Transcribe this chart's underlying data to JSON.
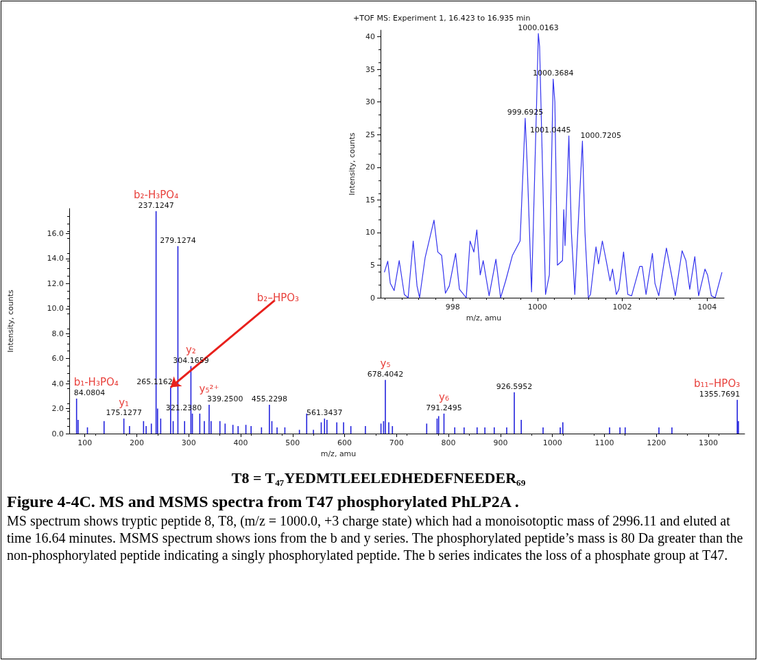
{
  "chart_data": [
    {
      "type": "bar",
      "xlabel": "m/z, amu",
      "ylabel": "Intensity, counts",
      "color": "#2222dd",
      "grid": false,
      "xlim": [
        70,
        1370
      ],
      "xticks": [
        100,
        200,
        300,
        400,
        500,
        600,
        700,
        800,
        900,
        1000,
        1100,
        1200,
        1300
      ],
      "ylim": [
        0,
        18
      ],
      "yticks": [
        {
          "value": 0,
          "label": "0.0"
        },
        {
          "value": 2,
          "label": "2.0"
        },
        {
          "value": 4,
          "label": "4.0"
        },
        {
          "value": 6,
          "label": "6.0"
        },
        {
          "value": 8,
          "label": "8.0"
        },
        {
          "value": 10,
          "label": "10.0"
        },
        {
          "value": 12,
          "label": "12.0"
        },
        {
          "value": 14,
          "label": "14.0"
        },
        {
          "value": 16,
          "label": "16.0"
        }
      ],
      "x": [
        84.0804,
        87,
        105,
        137,
        175.1277,
        186,
        213,
        218,
        228,
        237.1247,
        240,
        246,
        265.1162,
        270,
        279.1274,
        292,
        304.1659,
        307,
        321.238,
        330,
        339.25,
        343,
        360,
        370,
        385,
        395,
        410,
        420,
        440,
        455.2298,
        460,
        470,
        485,
        513,
        527,
        540,
        555,
        561.3437,
        566,
        585,
        598,
        612,
        640,
        670,
        675,
        678.4042,
        685,
        692,
        758,
        778,
        781,
        791.2495,
        812,
        830,
        855,
        870,
        888,
        912,
        926.5952,
        940,
        982,
        1015,
        1020,
        1110,
        1130,
        1140,
        1205,
        1230,
        1355.7691,
        1358
      ],
      "values": [
        2.8,
        1.1,
        0.5,
        1,
        1.2,
        0.6,
        1,
        0.6,
        0.8,
        17.8,
        2,
        1.2,
        3.7,
        1,
        15,
        1,
        5.4,
        1.6,
        1.6,
        1,
        2.3,
        1,
        1,
        0.8,
        0.7,
        0.6,
        0.7,
        0.6,
        0.5,
        2.3,
        1,
        0.5,
        0.5,
        0.3,
        1.6,
        0.3,
        0.9,
        1.2,
        1.1,
        0.9,
        0.9,
        0.6,
        0.6,
        0.8,
        1,
        4.3,
        0.9,
        0.6,
        0.8,
        1.2,
        1.4,
        1.6,
        0.5,
        0.5,
        0.5,
        0.5,
        0.5,
        0.5,
        3.3,
        1.1,
        0.5,
        0.5,
        0.9,
        0.5,
        0.5,
        0.5,
        0.5,
        0.5,
        2.7,
        1
      ],
      "annotations": [
        {
          "text": "84.0804",
          "x": 84.0804,
          "y": 2.8
        },
        {
          "text": "b₁-H₃PO₄",
          "x": 84.0804,
          "y": 2.8
        },
        {
          "text": "175.1277",
          "x": 175.1277,
          "y": 1.2
        },
        {
          "text": "y₁",
          "x": 175.1277,
          "y": 1.2
        },
        {
          "text": "237.1247",
          "x": 237.1247,
          "y": 17.8
        },
        {
          "text": "b₂-H₃PO₄",
          "x": 237.1247,
          "y": 17.8
        },
        {
          "text": "265.1162",
          "x": 265.1162,
          "y": 3.7
        },
        {
          "text": "b₂–HPO₃",
          "x": 265.1162,
          "y": 3.7
        },
        {
          "text": "279.1274",
          "x": 279.1274,
          "y": 15
        },
        {
          "text": "304.1659",
          "x": 304.1659,
          "y": 5.4
        },
        {
          "text": "y₂",
          "x": 304.1659,
          "y": 5.4
        },
        {
          "text": "321.2380",
          "x": 321.238,
          "y": 1.6
        },
        {
          "text": "339.2500",
          "x": 339.25,
          "y": 2.3
        },
        {
          "text": "y₅²⁺",
          "x": 339.25,
          "y": 2.3
        },
        {
          "text": "455.2298",
          "x": 455.2298,
          "y": 2.3
        },
        {
          "text": "561.3437",
          "x": 561.3437,
          "y": 1.2
        },
        {
          "text": "678.4042",
          "x": 678.4042,
          "y": 4.3
        },
        {
          "text": "y₅",
          "x": 678.4042,
          "y": 4.3
        },
        {
          "text": "791.2495",
          "x": 791.2495,
          "y": 1.6
        },
        {
          "text": "y₆",
          "x": 791.2495,
          "y": 1.6
        },
        {
          "text": "926.5952",
          "x": 926.5952,
          "y": 3.3
        },
        {
          "text": "1355.7691",
          "x": 1355.7691,
          "y": 2.7
        },
        {
          "text": "b₁₁–HPO₃",
          "x": 1355.7691,
          "y": 2.7
        },
        "T8 = T₄₇YEDMTLEELEDHEDEFNEEDER₆₉",
        "Figure 4-4C.  MS and MSMS spectra from T47 phosphorylated PhLP2A .",
        "MS spectrum shows tryptic peptide 8, T8, (m/z = 1000.0, +3 charge state) which had a monoisotoptic mass of 2996.11 and eluted at time 16.64 minutes. MSMS spectrum shows ions from the b and y series. The phosphorylated peptide’s mass is 80 Da greater than the non-phosphorylated peptide indicating a singly phosphorylated peptide. The b series indicates the loss of a phosphate group at T47."
      ]
    },
    {
      "type": "line",
      "title": "+TOF MS: Experiment 1, 16.423 to 16.935 min",
      "xlabel": "m/z, amu",
      "ylabel": "Intensity, counts",
      "color": "#3333ee",
      "grid": false,
      "marker": "none",
      "line_style": "solid",
      "xlim": [
        996.3,
        1004.4
      ],
      "xticks": [
        998,
        1000,
        1002,
        1004
      ],
      "ylim": [
        0,
        41
      ],
      "yticks": [
        0,
        5,
        10,
        15,
        20,
        25,
        30,
        35,
        40
      ],
      "x": [
        996.39,
        996.47,
        996.53,
        996.62,
        996.74,
        996.86,
        996.95,
        997.07,
        997.16,
        997.22,
        997.35,
        997.56,
        997.65,
        997.74,
        997.83,
        997.92,
        998.07,
        998.16,
        998.32,
        998.41,
        998.5,
        998.57,
        998.65,
        998.72,
        998.86,
        999.02,
        999.13,
        999.25,
        999.41,
        999.59,
        999.71,
        999.76,
        999.86,
        999.98,
        1000.02,
        1000.05,
        1000.19,
        1000.28,
        1000.3,
        1000.37,
        1000.41,
        1000.47,
        1000.59,
        1000.62,
        1000.65,
        1000.74,
        1000.8,
        1000.88,
        1000.95,
        1001.06,
        1001.12,
        1001.2,
        1001.25,
        1001.38,
        1001.44,
        1001.53,
        1001.62,
        1001.71,
        1001.77,
        1001.86,
        1001.92,
        1002.03,
        1002.13,
        1002.22,
        1002.41,
        1002.47,
        1002.56,
        1002.71,
        1002.77,
        1002.86,
        1003.04,
        1003.16,
        1003.25,
        1003.41,
        1003.5,
        1003.59,
        1003.71,
        1003.8,
        1003.95,
        1004.01,
        1004.1,
        1004.19,
        1004.35
      ],
      "values": [
        3.9,
        5.6,
        2.2,
        1.1,
        5.7,
        0.5,
        0,
        8.7,
        1.8,
        0,
        6.1,
        11.9,
        7,
        6.5,
        0.7,
        1.8,
        6.8,
        1.3,
        0,
        8.7,
        7,
        10.4,
        3.5,
        5.7,
        0.3,
        5.9,
        0,
        2.6,
        6.5,
        8.7,
        27.5,
        20,
        0.9,
        30,
        40.5,
        38.5,
        0.5,
        3.5,
        10,
        33.5,
        30,
        5,
        5.7,
        13.5,
        8,
        24.8,
        10,
        0.5,
        10,
        24,
        10,
        0,
        0.5,
        7.8,
        5.2,
        8.7,
        5.7,
        2.6,
        4.4,
        0.5,
        1.3,
        7,
        0.5,
        0.3,
        4.8,
        4.8,
        0.5,
        6.8,
        2.2,
        0.3,
        7.6,
        3.5,
        0.3,
        7.2,
        5.7,
        1.3,
        6.3,
        0.3,
        4.4,
        3.5,
        0.3,
        0,
        3.9
      ],
      "annotations": [
        {
          "text": "999.6925",
          "x": 999.71,
          "y": 27.5
        },
        {
          "text": "1000.0163",
          "x": 1000.02,
          "y": 40.5
        },
        {
          "text": "1000.3684",
          "x": 1000.37,
          "y": 33.5
        },
        {
          "text": "1001.0445",
          "x": 1000.74,
          "y": 24.8
        },
        {
          "text": "1000.7205",
          "x": 1001.06,
          "y": 24
        }
      ]
    }
  ]
}
